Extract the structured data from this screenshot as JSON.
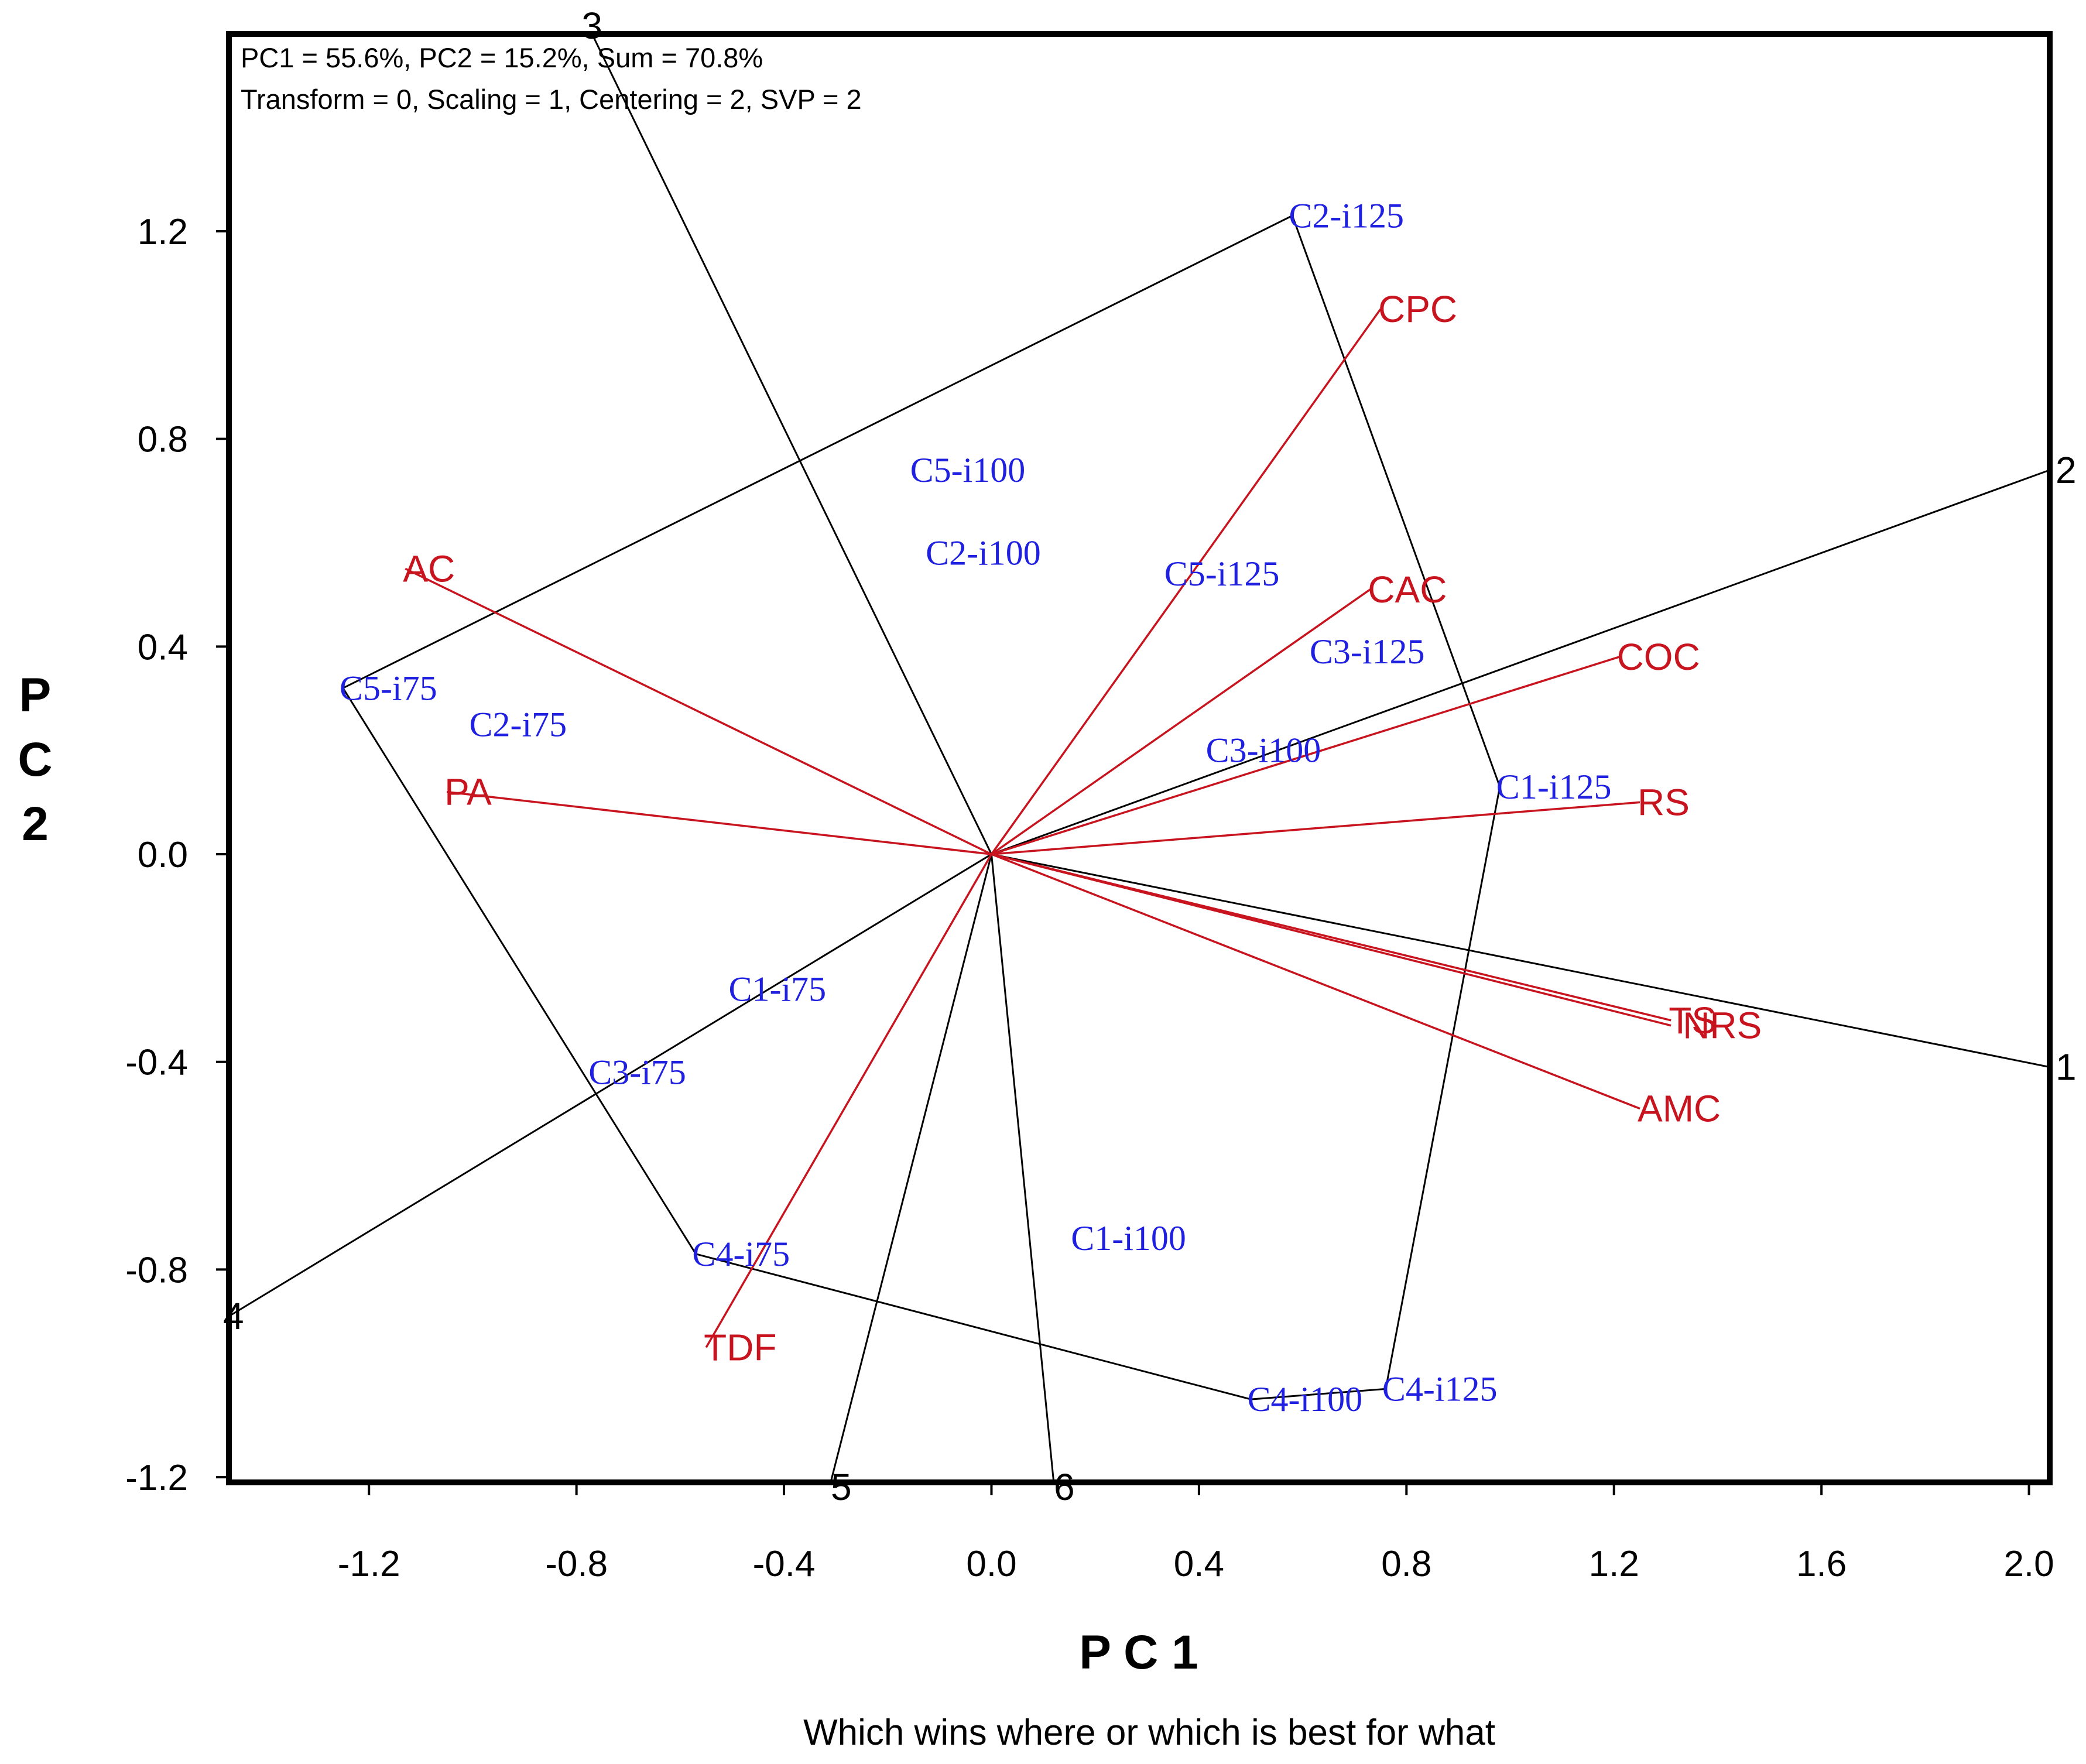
{
  "chart_data": {
    "type": "scatter",
    "subtype": "GGE biplot — which wins where / which is best for what",
    "info_line1": "PC1 = 55.6%, PC2 = 15.2%, Sum = 70.8%",
    "info_line2": "Transform = 0, Scaling = 1, Centering = 2, SVP = 2",
    "xlabel": "P C 1",
    "ylabel_letters": [
      "P",
      "C",
      "2"
    ],
    "caption": "Which wins where or which is best for what",
    "xlim": [
      -1.47,
      2.04
    ],
    "ylim": [
      -1.21,
      1.58
    ],
    "xticks": [
      -1.2,
      -0.8,
      -0.4,
      0.0,
      0.4,
      0.8,
      1.2,
      1.6,
      2.0
    ],
    "xtick_labels": [
      "-1.2",
      "-0.8",
      "-0.4",
      "0.0",
      "0.4",
      "0.8",
      "1.2",
      "1.6",
      "2.0"
    ],
    "yticks": [
      1.2,
      0.8,
      0.4,
      0.0,
      -0.4,
      -0.8,
      -1.2
    ],
    "ytick_labels": [
      "1.2",
      "0.8",
      "0.4",
      "0.0",
      "-0.4",
      "-0.8",
      "-1.2"
    ],
    "colors": {
      "genotype": "#2020e0",
      "trait": "#c8141e",
      "lines": "#000000"
    },
    "genotypes": [
      {
        "label": "C2-i125",
        "x": 0.58,
        "y": 1.23
      },
      {
        "label": "C5-i100",
        "x": -0.15,
        "y": 0.74
      },
      {
        "label": "C2-i100",
        "x": -0.12,
        "y": 0.58
      },
      {
        "label": "C5-i125",
        "x": 0.34,
        "y": 0.54
      },
      {
        "label": "C3-i125",
        "x": 0.62,
        "y": 0.39
      },
      {
        "label": "C5-i75",
        "x": -1.25,
        "y": 0.32
      },
      {
        "label": "C2-i75",
        "x": -1.0,
        "y": 0.25
      },
      {
        "label": "C3-i100",
        "x": 0.42,
        "y": 0.2
      },
      {
        "label": "C1-i125",
        "x": 0.98,
        "y": 0.13
      },
      {
        "label": "C1-i75",
        "x": -0.5,
        "y": -0.26
      },
      {
        "label": "C3-i75",
        "x": -0.77,
        "y": -0.42
      },
      {
        "label": "C1-i100",
        "x": 0.16,
        "y": -0.74
      },
      {
        "label": "C4-i75",
        "x": -0.57,
        "y": -0.77
      },
      {
        "label": "C4-i100",
        "x": 0.5,
        "y": -1.05
      },
      {
        "label": "C4-i125",
        "x": 0.76,
        "y": -1.03
      }
    ],
    "traits": [
      {
        "label": "CPC",
        "x": 0.75,
        "y": 1.05
      },
      {
        "label": "AC",
        "x": -1.13,
        "y": 0.55
      },
      {
        "label": "CAC",
        "x": 0.73,
        "y": 0.51
      },
      {
        "label": "COC",
        "x": 1.21,
        "y": 0.38
      },
      {
        "label": "PA",
        "x": -1.05,
        "y": 0.12
      },
      {
        "label": "RS",
        "x": 1.25,
        "y": 0.1
      },
      {
        "label": "TS",
        "x": 1.31,
        "y": -0.32
      },
      {
        "label": "NRS",
        "x": 1.31,
        "y": -0.33
      },
      {
        "label": "AMC",
        "x": 1.25,
        "y": -0.49
      },
      {
        "label": "TDF",
        "x": -0.55,
        "y": -0.95
      }
    ],
    "polygon_vertices": [
      "C2-i125",
      "C1-i125",
      "C4-i125",
      "C4-i100",
      "C4-i75",
      "C5-i75"
    ],
    "sector_rays": [
      {
        "label": "1",
        "x": 2.04,
        "y": -0.41
      },
      {
        "label": "2",
        "x": 2.04,
        "y": 0.74
      },
      {
        "label": "3",
        "x": -0.77,
        "y": 1.58
      },
      {
        "label": "4",
        "x": -1.47,
        "y": -0.89
      },
      {
        "label": "5",
        "x": -0.31,
        "y": -1.21
      },
      {
        "label": "6",
        "x": 0.12,
        "y": -1.21
      }
    ]
  }
}
